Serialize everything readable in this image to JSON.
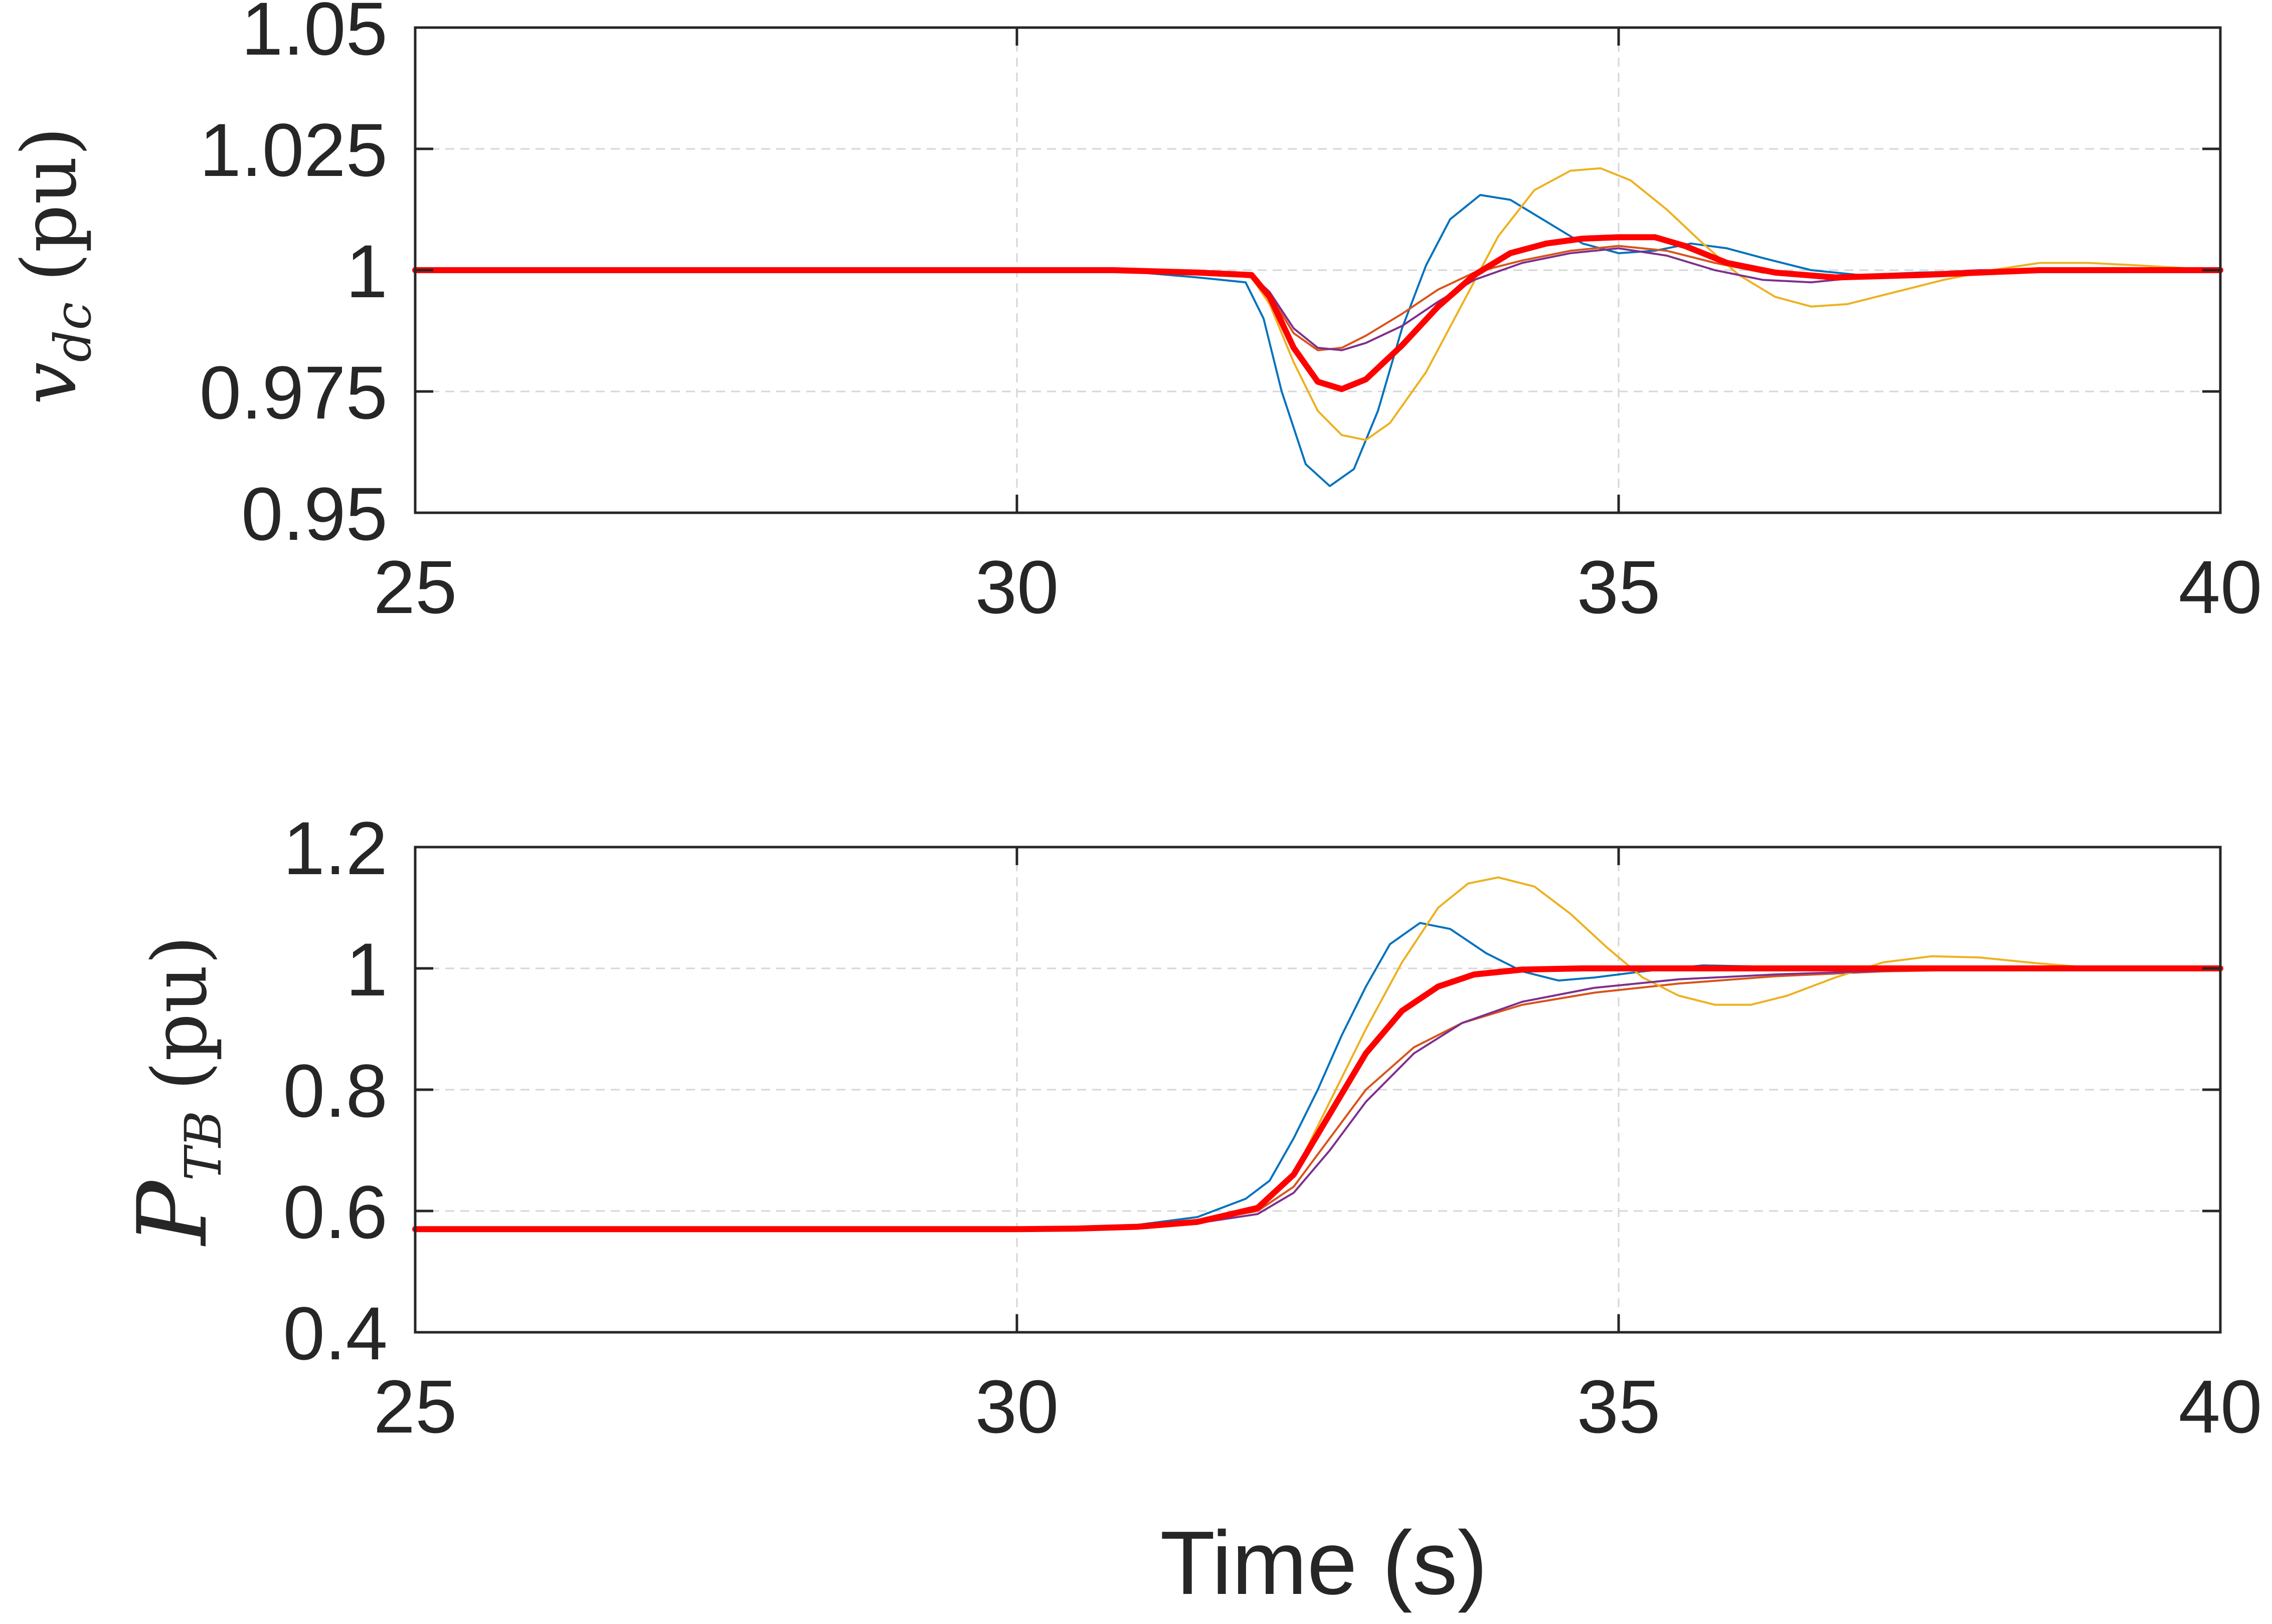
{
  "figure": {
    "xlabel": "Time (s)"
  },
  "chart_data": [
    {
      "type": "line",
      "ylabel_main": "v",
      "ylabel_sub": "dc",
      "ylabel_unit": "(pu)",
      "xlim": [
        25,
        40
      ],
      "ylim": [
        0.95,
        1.05
      ],
      "xticks": [
        "25",
        "30",
        "35",
        "40"
      ],
      "yticks": [
        "0.95",
        "0.975",
        "1",
        "1.025",
        "1.05"
      ],
      "xtick_values": [
        25,
        30,
        35,
        40
      ],
      "ytick_values": [
        0.95,
        0.975,
        1,
        1.025,
        1.05
      ],
      "grid": true,
      "series": [
        {
          "color": "#0072BD",
          "width": 4,
          "points": [
            [
              25,
              1.0
            ],
            [
              30,
              1.0
            ],
            [
              30.8,
              1.0
            ],
            [
              31.5,
              0.9985
            ],
            [
              31.9,
              0.9975
            ],
            [
              32.05,
              0.99
            ],
            [
              32.2,
              0.975
            ],
            [
              32.4,
              0.96
            ],
            [
              32.6,
              0.9555
            ],
            [
              32.8,
              0.959
            ],
            [
              33.0,
              0.971
            ],
            [
              33.2,
              0.988
            ],
            [
              33.4,
              1.001
            ],
            [
              33.6,
              1.0105
            ],
            [
              33.85,
              1.0155
            ],
            [
              34.1,
              1.0145
            ],
            [
              34.4,
              1.01
            ],
            [
              34.7,
              1.0055
            ],
            [
              35.0,
              1.0035
            ],
            [
              35.3,
              1.004
            ],
            [
              35.6,
              1.0055
            ],
            [
              35.9,
              1.0045
            ],
            [
              36.2,
              1.0025
            ],
            [
              36.6,
              1.0
            ],
            [
              37.0,
              0.999
            ],
            [
              37.5,
              0.9995
            ],
            [
              38.5,
              1.0
            ],
            [
              40,
              1.0
            ]
          ]
        },
        {
          "color": "#D95319",
          "width": 4,
          "points": [
            [
              25,
              1.0
            ],
            [
              30,
              1.0
            ],
            [
              30.8,
              1.0
            ],
            [
              31.5,
              0.9995
            ],
            [
              31.95,
              0.9985
            ],
            [
              32.1,
              0.995
            ],
            [
              32.3,
              0.987
            ],
            [
              32.5,
              0.9835
            ],
            [
              32.7,
              0.984
            ],
            [
              32.9,
              0.9865
            ],
            [
              33.2,
              0.991
            ],
            [
              33.5,
              0.996
            ],
            [
              33.8,
              0.9995
            ],
            [
              34.2,
              1.002
            ],
            [
              34.6,
              1.004
            ],
            [
              35.0,
              1.005
            ],
            [
              35.4,
              1.004
            ],
            [
              35.8,
              1.0015
            ],
            [
              36.2,
              0.9995
            ],
            [
              36.8,
              0.9985
            ],
            [
              37.5,
              0.999
            ],
            [
              38.5,
              1.0
            ],
            [
              40,
              1.0
            ]
          ]
        },
        {
          "color": "#EDB120",
          "width": 4,
          "points": [
            [
              25,
              1.0
            ],
            [
              30,
              1.0
            ],
            [
              30.8,
              1.0
            ],
            [
              31.5,
              0.9995
            ],
            [
              31.95,
              0.9985
            ],
            [
              32.1,
              0.993
            ],
            [
              32.3,
              0.981
            ],
            [
              32.5,
              0.971
            ],
            [
              32.7,
              0.966
            ],
            [
              32.9,
              0.965
            ],
            [
              33.1,
              0.9685
            ],
            [
              33.4,
              0.979
            ],
            [
              33.7,
              0.993
            ],
            [
              34.0,
              1.007
            ],
            [
              34.3,
              1.0165
            ],
            [
              34.6,
              1.0205
            ],
            [
              34.85,
              1.021
            ],
            [
              35.1,
              1.0185
            ],
            [
              35.4,
              1.0125
            ],
            [
              35.7,
              1.0055
            ],
            [
              36.0,
              0.999
            ],
            [
              36.3,
              0.9945
            ],
            [
              36.6,
              0.9925
            ],
            [
              36.9,
              0.993
            ],
            [
              37.3,
              0.9955
            ],
            [
              37.7,
              0.998
            ],
            [
              38.1,
              1.0
            ],
            [
              38.5,
              1.0015
            ],
            [
              38.9,
              1.0015
            ],
            [
              39.3,
              1.001
            ],
            [
              40,
              1.0
            ]
          ]
        },
        {
          "color": "#7E2F8E",
          "width": 4,
          "points": [
            [
              25,
              1.0
            ],
            [
              30,
              1.0
            ],
            [
              30.8,
              1.0
            ],
            [
              31.5,
              0.9995
            ],
            [
              31.95,
              0.999
            ],
            [
              32.1,
              0.9955
            ],
            [
              32.3,
              0.988
            ],
            [
              32.5,
              0.984
            ],
            [
              32.7,
              0.9835
            ],
            [
              32.9,
              0.985
            ],
            [
              33.2,
              0.9885
            ],
            [
              33.5,
              0.9935
            ],
            [
              33.8,
              0.998
            ],
            [
              34.2,
              1.0015
            ],
            [
              34.6,
              1.0035
            ],
            [
              35.0,
              1.0045
            ],
            [
              35.4,
              1.003
            ],
            [
              35.8,
              1.0
            ],
            [
              36.2,
              0.998
            ],
            [
              36.6,
              0.9975
            ],
            [
              37.2,
              0.999
            ],
            [
              38.0,
              1.0
            ],
            [
              40,
              1.0
            ]
          ]
        },
        {
          "color": "#FF0000",
          "width": 12,
          "points": [
            [
              25,
              1.0
            ],
            [
              30,
              1.0
            ],
            [
              30.8,
              1.0
            ],
            [
              31.5,
              0.9995
            ],
            [
              31.95,
              0.999
            ],
            [
              32.1,
              0.9945
            ],
            [
              32.3,
              0.984
            ],
            [
              32.5,
              0.977
            ],
            [
              32.7,
              0.9755
            ],
            [
              32.9,
              0.9775
            ],
            [
              33.2,
              0.9845
            ],
            [
              33.5,
              0.9925
            ],
            [
              33.8,
              0.999
            ],
            [
              34.1,
              1.0035
            ],
            [
              34.4,
              1.0055
            ],
            [
              34.7,
              1.0065
            ],
            [
              35.0,
              1.0068
            ],
            [
              35.3,
              1.0068
            ],
            [
              35.55,
              1.005
            ],
            [
              35.9,
              1.0015
            ],
            [
              36.3,
              0.9995
            ],
            [
              36.8,
              0.9985
            ],
            [
              37.5,
              0.999
            ],
            [
              38.5,
              1.0
            ],
            [
              40,
              1.0
            ]
          ]
        }
      ]
    },
    {
      "type": "line",
      "ylabel_main": "P",
      "ylabel_sub": "TB",
      "ylabel_unit": "(pu)",
      "xlim": [
        25,
        40
      ],
      "ylim": [
        0.4,
        1.2
      ],
      "xticks": [
        "25",
        "30",
        "35",
        "40"
      ],
      "yticks": [
        "0.4",
        "0.6",
        "0.8",
        "1",
        "1.2"
      ],
      "xtick_values": [
        25,
        30,
        35,
        40
      ],
      "ytick_values": [
        0.4,
        0.6,
        0.8,
        1.0,
        1.2
      ],
      "grid": true,
      "series": [
        {
          "color": "#0072BD",
          "width": 4,
          "points": [
            [
              25,
              0.57
            ],
            [
              30,
              0.57
            ],
            [
              30.5,
              0.571
            ],
            [
              31.0,
              0.577
            ],
            [
              31.5,
              0.59
            ],
            [
              31.9,
              0.62
            ],
            [
              32.1,
              0.65
            ],
            [
              32.3,
              0.72
            ],
            [
              32.5,
              0.8
            ],
            [
              32.7,
              0.89
            ],
            [
              32.9,
              0.97
            ],
            [
              33.1,
              1.04
            ],
            [
              33.35,
              1.075
            ],
            [
              33.6,
              1.065
            ],
            [
              33.9,
              1.025
            ],
            [
              34.2,
              0.995
            ],
            [
              34.5,
              0.98
            ],
            [
              34.8,
              0.985
            ],
            [
              35.2,
              0.995
            ],
            [
              35.7,
              1.005
            ],
            [
              36.2,
              1.003
            ],
            [
              37,
              1.0
            ],
            [
              40,
              1.0
            ]
          ]
        },
        {
          "color": "#D95319",
          "width": 4,
          "points": [
            [
              25,
              0.57
            ],
            [
              30,
              0.57
            ],
            [
              30.5,
              0.571
            ],
            [
              31.0,
              0.574
            ],
            [
              31.5,
              0.582
            ],
            [
              32.0,
              0.6
            ],
            [
              32.3,
              0.64
            ],
            [
              32.6,
              0.72
            ],
            [
              32.9,
              0.8
            ],
            [
              33.3,
              0.87
            ],
            [
              33.7,
              0.91
            ],
            [
              34.2,
              0.94
            ],
            [
              34.8,
              0.96
            ],
            [
              35.5,
              0.975
            ],
            [
              36.3,
              0.987
            ],
            [
              37.2,
              0.995
            ],
            [
              38.5,
              1.0
            ],
            [
              40,
              1.0
            ]
          ]
        },
        {
          "color": "#EDB120",
          "width": 4,
          "points": [
            [
              25,
              0.57
            ],
            [
              30,
              0.57
            ],
            [
              30.5,
              0.571
            ],
            [
              31.0,
              0.574
            ],
            [
              31.5,
              0.583
            ],
            [
              32.0,
              0.605
            ],
            [
              32.3,
              0.66
            ],
            [
              32.6,
              0.78
            ],
            [
              32.9,
              0.9
            ],
            [
              33.2,
              1.01
            ],
            [
              33.5,
              1.1
            ],
            [
              33.75,
              1.14
            ],
            [
              34.0,
              1.15
            ],
            [
              34.3,
              1.135
            ],
            [
              34.6,
              1.09
            ],
            [
              34.9,
              1.035
            ],
            [
              35.2,
              0.985
            ],
            [
              35.5,
              0.955
            ],
            [
              35.8,
              0.94
            ],
            [
              36.1,
              0.94
            ],
            [
              36.4,
              0.955
            ],
            [
              36.8,
              0.985
            ],
            [
              37.2,
              1.01
            ],
            [
              37.6,
              1.02
            ],
            [
              38.0,
              1.018
            ],
            [
              38.5,
              1.008
            ],
            [
              39.0,
              1.0
            ],
            [
              39.5,
              0.997
            ],
            [
              40,
              0.998
            ]
          ]
        },
        {
          "color": "#7E2F8E",
          "width": 4,
          "points": [
            [
              25,
              0.57
            ],
            [
              30,
              0.57
            ],
            [
              30.5,
              0.571
            ],
            [
              31.0,
              0.573
            ],
            [
              31.5,
              0.58
            ],
            [
              32.0,
              0.595
            ],
            [
              32.3,
              0.63
            ],
            [
              32.6,
              0.7
            ],
            [
              32.9,
              0.78
            ],
            [
              33.3,
              0.86
            ],
            [
              33.7,
              0.91
            ],
            [
              34.2,
              0.945
            ],
            [
              34.8,
              0.968
            ],
            [
              35.5,
              0.982
            ],
            [
              36.3,
              0.99
            ],
            [
              37.2,
              0.996
            ],
            [
              38.5,
              1.0
            ],
            [
              40,
              1.0
            ]
          ]
        },
        {
          "color": "#FF0000",
          "width": 12,
          "points": [
            [
              25,
              0.57
            ],
            [
              30,
              0.57
            ],
            [
              30.5,
              0.571
            ],
            [
              31.0,
              0.574
            ],
            [
              31.5,
              0.582
            ],
            [
              32.0,
              0.605
            ],
            [
              32.3,
              0.66
            ],
            [
              32.6,
              0.76
            ],
            [
              32.9,
              0.86
            ],
            [
              33.2,
              0.93
            ],
            [
              33.5,
              0.97
            ],
            [
              33.8,
              0.99
            ],
            [
              34.2,
              0.998
            ],
            [
              34.7,
              1.0
            ],
            [
              40,
              1.0
            ]
          ]
        }
      ]
    }
  ]
}
